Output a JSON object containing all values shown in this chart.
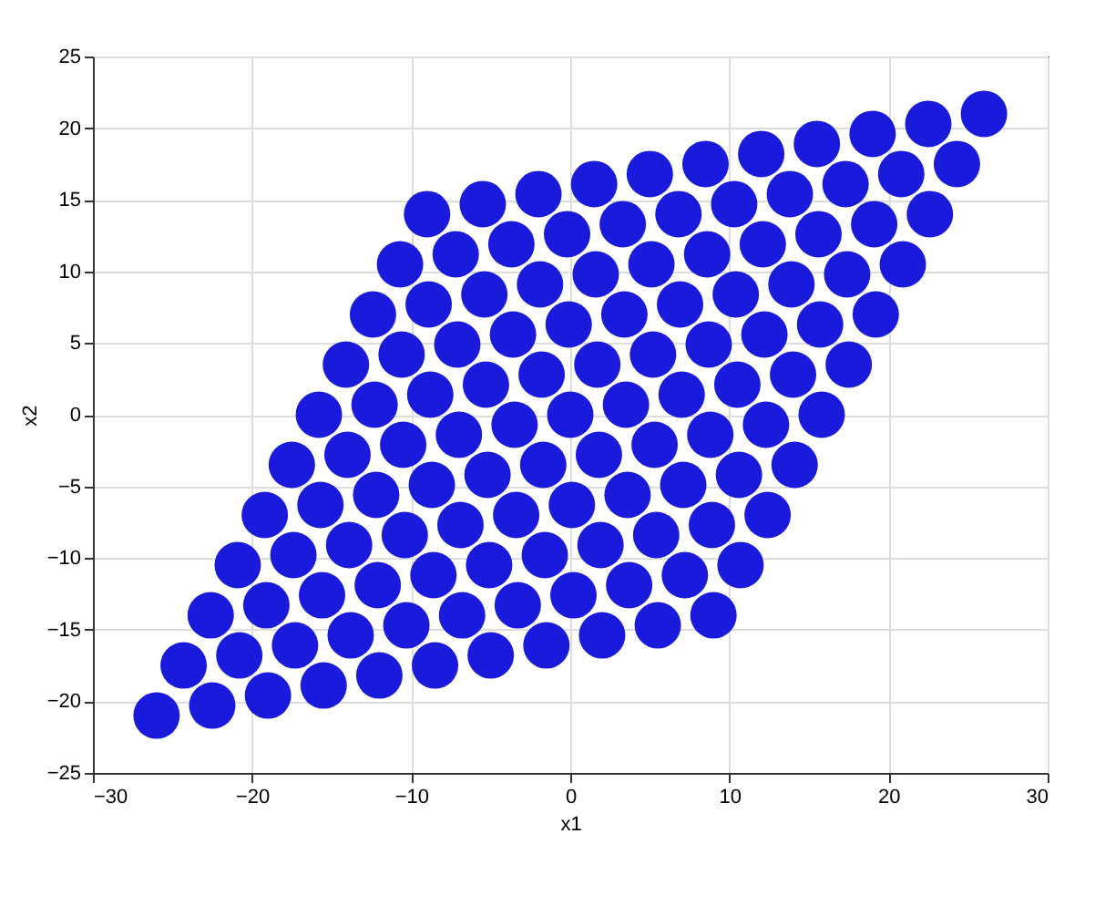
{
  "chart_data": {
    "type": "scatter",
    "xlabel": "x1",
    "ylabel": "x2",
    "xlim": [
      -30,
      30
    ],
    "xticks": [
      -30,
      -20,
      -10,
      0,
      10,
      20,
      30
    ],
    "ylim": [
      -25,
      25
    ],
    "yticks": [
      -25,
      -20,
      -15,
      -10,
      -5,
      0,
      5,
      10,
      15,
      20,
      25
    ],
    "grid": true,
    "marker": "circle",
    "series": [
      {
        "color": "#1a1adc",
        "x": [
          -26,
          -22.5,
          -19,
          -15.5,
          -12,
          -8.5,
          -5,
          -1.5,
          2,
          5.5,
          9,
          -24.3,
          -20.8,
          -17.3,
          -13.8,
          -10.3,
          -6.8,
          -3.3,
          0.2,
          3.7,
          7.2,
          10.7,
          -22.6,
          -19.1,
          -15.6,
          -12.1,
          -8.6,
          -5.1,
          -1.6,
          1.9,
          5.4,
          8.9,
          12.4,
          -20.9,
          -17.4,
          -13.9,
          -10.4,
          -6.9,
          -3.4,
          0.1,
          3.6,
          7.1,
          10.6,
          14.1,
          -19.2,
          -15.7,
          -12.2,
          -8.7,
          -5.2,
          -1.7,
          1.8,
          5.3,
          8.8,
          12.3,
          15.8,
          -17.5,
          -14,
          -10.5,
          -7,
          -3.5,
          0,
          3.5,
          7,
          10.5,
          14,
          17.5,
          -15.8,
          -12.3,
          -8.8,
          -5.3,
          -1.8,
          1.7,
          5.2,
          8.7,
          12.2,
          15.7,
          19.2,
          -14.1,
          -10.6,
          -7.1,
          -3.6,
          -0.1,
          3.4,
          6.9,
          10.4,
          13.9,
          17.4,
          20.9,
          -12.4,
          -8.9,
          -5.4,
          -1.9,
          1.6,
          5.1,
          8.6,
          12.1,
          15.6,
          19.1,
          22.6,
          -10.7,
          -7.2,
          -3.7,
          -0.2,
          3.3,
          6.8,
          10.3,
          13.8,
          17.3,
          20.8,
          24.3,
          -9,
          -5.5,
          -2,
          1.5,
          5,
          8.5,
          12,
          15.5,
          19,
          22.5,
          26
        ],
        "values": [
          -21,
          -20.3,
          -19.6,
          -18.9,
          -18.2,
          -17.5,
          -16.8,
          -16.1,
          -15.4,
          -14.7,
          -14,
          -17.5,
          -16.8,
          -16.1,
          -15.4,
          -14.7,
          -14,
          -13.3,
          -12.6,
          -11.9,
          -11.2,
          -10.5,
          -14,
          -13.3,
          -12.6,
          -11.9,
          -11.2,
          -10.5,
          -9.8,
          -9.1,
          -8.4,
          -7.7,
          -7,
          -10.5,
          -9.8,
          -9.1,
          -8.4,
          -7.7,
          -7,
          -6.3,
          -5.6,
          -4.9,
          -4.2,
          -3.5,
          -7,
          -6.3,
          -5.6,
          -4.9,
          -4.2,
          -3.5,
          -2.8,
          -2.1,
          -1.4,
          -0.7,
          0,
          -3.5,
          -2.8,
          -2.1,
          -1.4,
          -0.7,
          0,
          0.7,
          1.4,
          2.1,
          2.8,
          3.5,
          0,
          0.7,
          1.4,
          2.1,
          2.8,
          3.5,
          4.2,
          4.9,
          5.6,
          6.3,
          7,
          3.5,
          4.2,
          4.9,
          5.6,
          6.3,
          7,
          7.7,
          8.4,
          9.1,
          9.8,
          10.5,
          7,
          7.7,
          8.4,
          9.1,
          9.8,
          10.5,
          11.2,
          11.9,
          12.6,
          13.3,
          14,
          10.5,
          11.2,
          11.9,
          12.6,
          13.3,
          14,
          14.7,
          15.4,
          16.1,
          16.8,
          17.5,
          14,
          14.7,
          15.4,
          16.1,
          16.8,
          17.5,
          18.2,
          18.9,
          19.6,
          20.3,
          21
        ]
      }
    ]
  }
}
